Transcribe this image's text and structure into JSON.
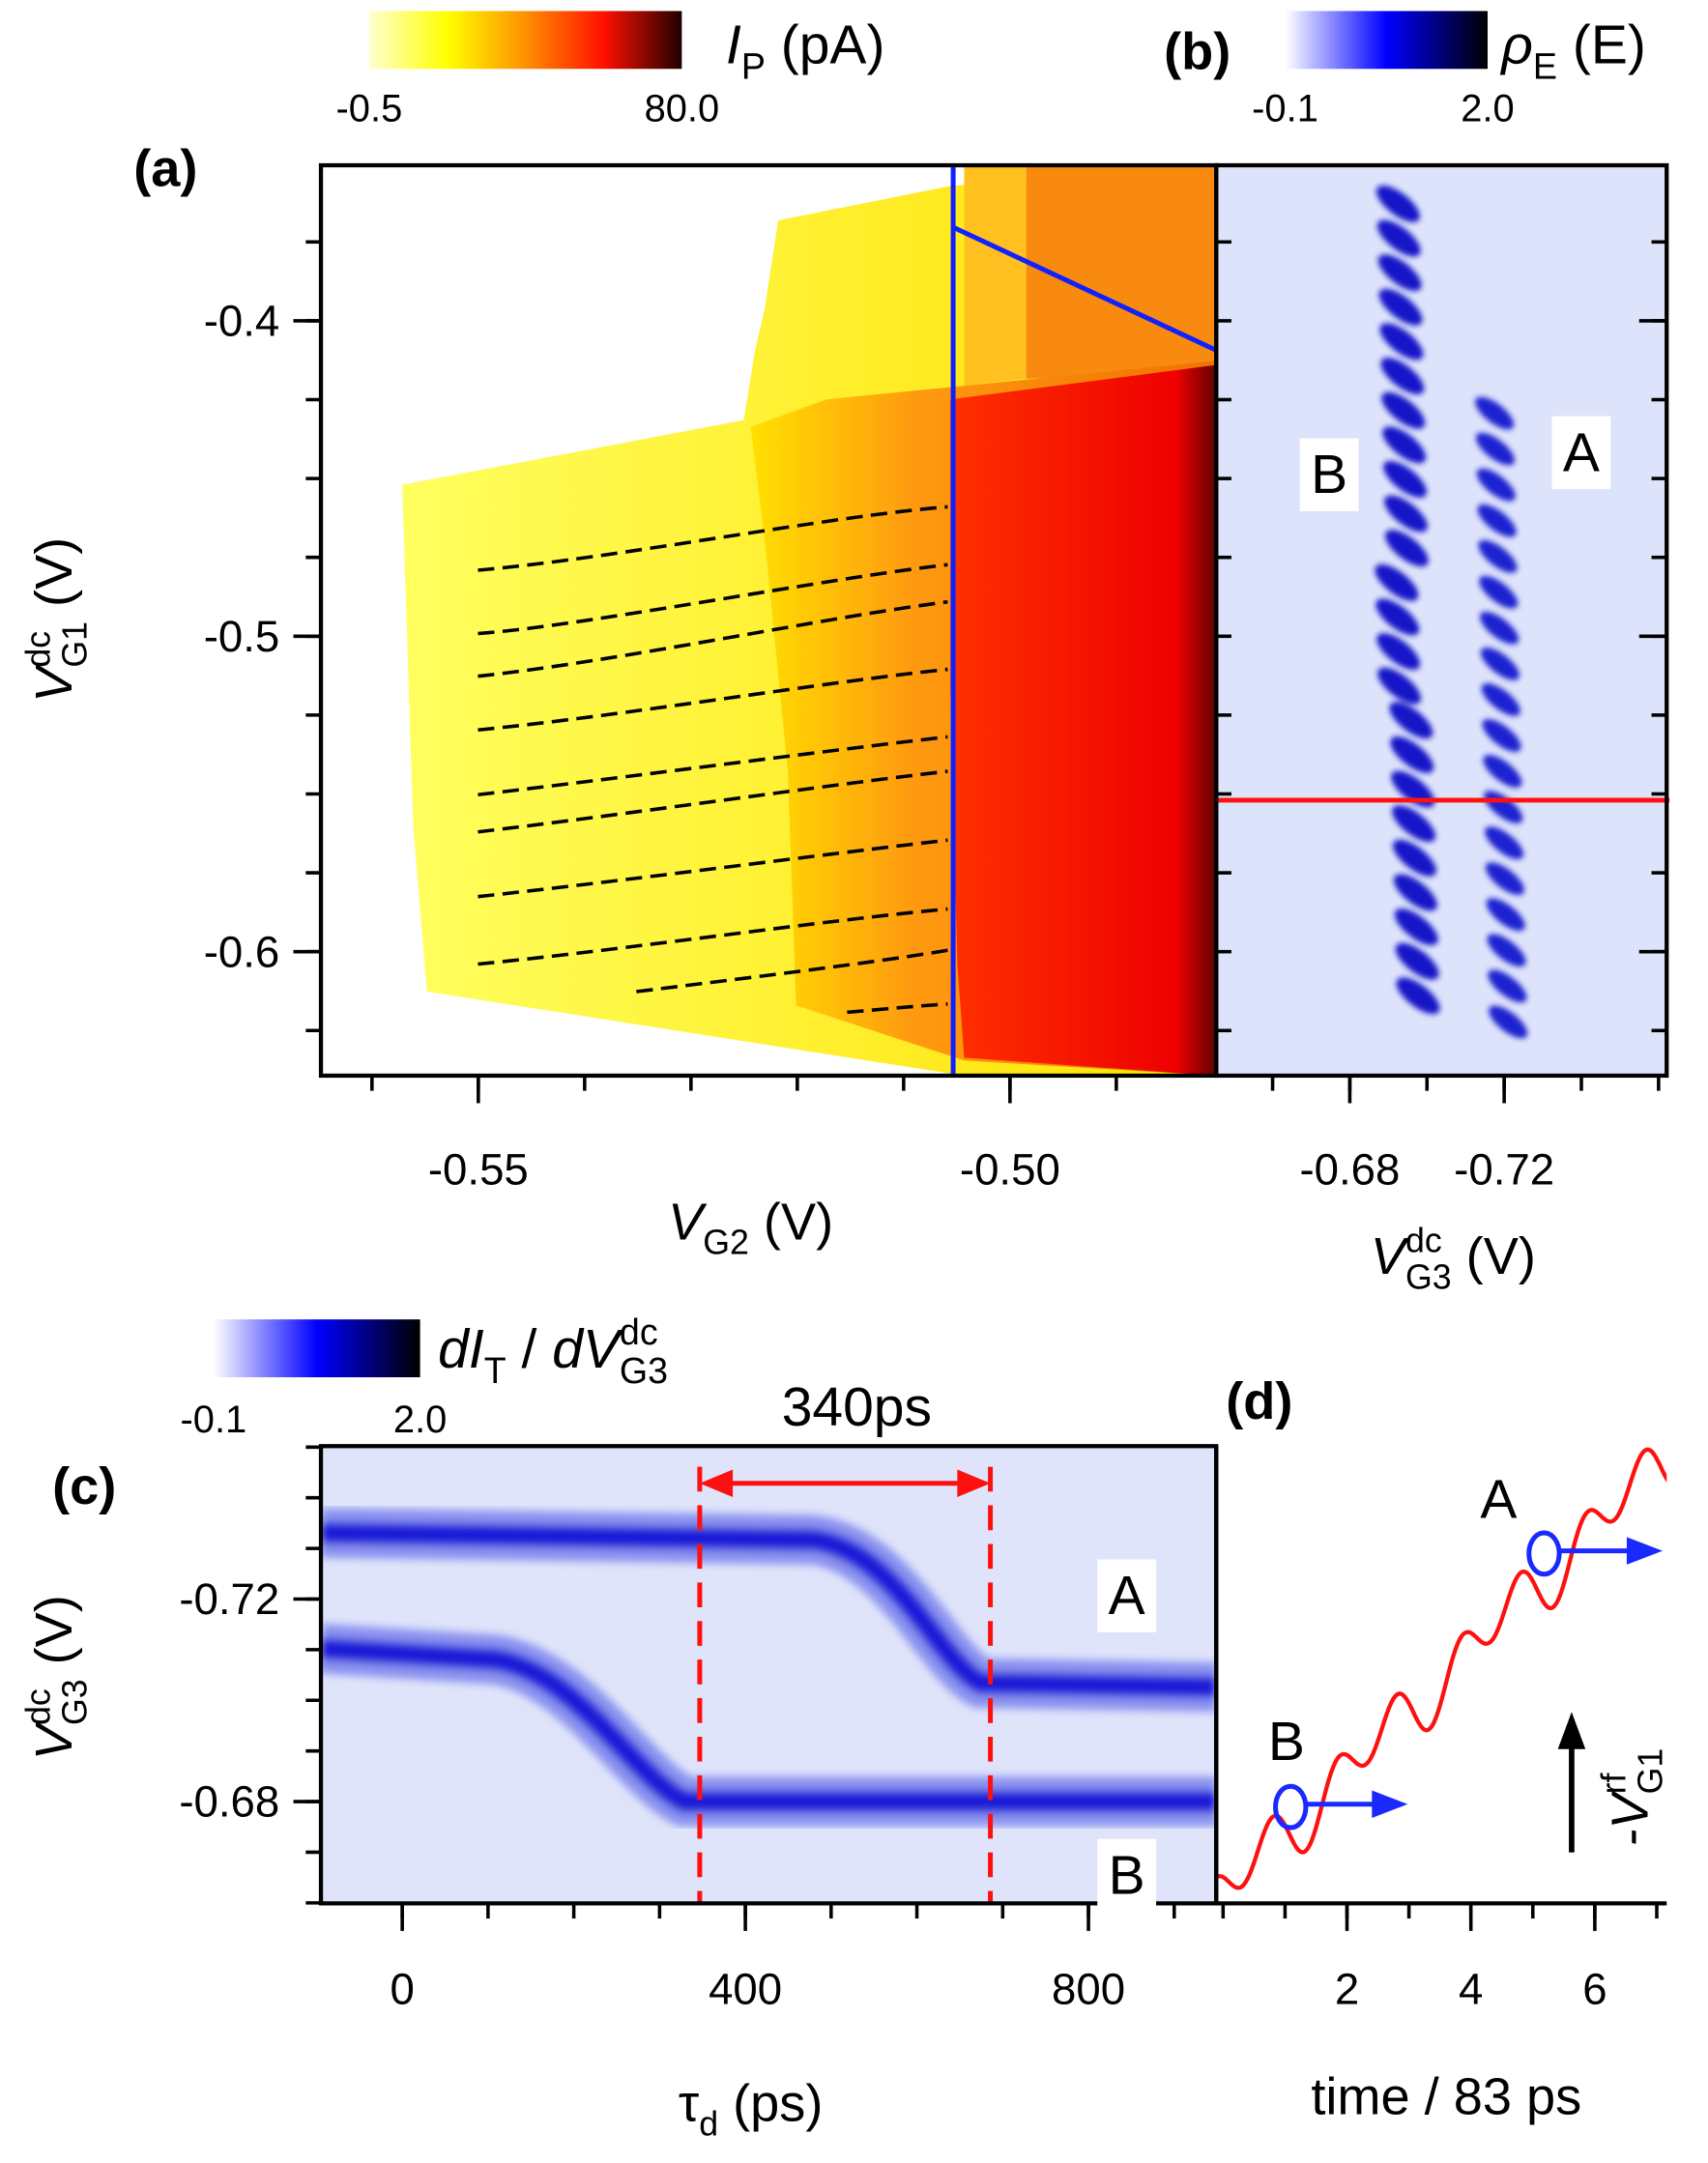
{
  "chart_data": [
    {
      "type": "heatmap",
      "panel_label": "(a)",
      "x_label": [
        {
          "text": "V",
          "style": "i"
        },
        {
          "text": "G2",
          "style": "sub"
        },
        {
          "text": " (V)"
        }
      ],
      "y_label": [
        {
          "text": "V",
          "style": "i"
        },
        {
          "text": "dc",
          "style": "sup"
        },
        {
          "text": "G1",
          "style": "sub"
        },
        {
          "text": " (V)"
        }
      ],
      "xlim": [
        -0.5648,
        -0.4806
      ],
      "xticks": [
        -0.55,
        {
          "value": -0.5,
          "label": "-0.50"
        }
      ],
      "ylim": [
        -0.6393,
        -0.3507
      ],
      "yticks": [
        -0.6,
        -0.5,
        -0.4
      ],
      "colorbar": {
        "label": [
          {
            "text": "I",
            "style": "i"
          },
          {
            "text": "P",
            "style": "sub"
          },
          {
            "text": " (pA)"
          }
        ],
        "clim": [
          -0.5,
          80
        ],
        "ticks": [
          -0.5,
          {
            "value": 80,
            "label": "80.0"
          }
        ],
        "colors": [
          "#ffffd0",
          "#ffff00",
          "#ff9000",
          "#ff1000",
          "#200000"
        ]
      }
    },
    {
      "type": "heatmap",
      "panel_label": "(b)",
      "x_label": [
        {
          "text": "V",
          "style": "i"
        },
        {
          "text": "dc",
          "style": "sup"
        },
        {
          "text": "G3",
          "style": "sub"
        },
        {
          "text": " (V)"
        }
      ],
      "xlim": [
        -0.6454,
        -0.7621
      ],
      "xticks": [
        -0.68,
        -0.72
      ],
      "ylim": [
        -0.6393,
        -0.3507
      ],
      "colorbar": {
        "label": [
          {
            "text": "ρ",
            "style": "i"
          },
          {
            "text": "E",
            "style": "sub"
          },
          {
            "text": " (E)"
          }
        ],
        "clim": [
          -0.1,
          2
        ],
        "ticks": [
          -0.1,
          {
            "value": 2,
            "label": "2.0"
          }
        ],
        "colors": [
          "#ffffff",
          "#0000ff",
          "#000000"
        ]
      },
      "annotations": [
        "B",
        "A"
      ]
    },
    {
      "type": "heatmap",
      "panel_label": "(c)",
      "x_label": [
        {
          "text": "τ"
        },
        {
          "text": "d",
          "style": "sub"
        },
        {
          "text": " (ps)"
        }
      ],
      "y_label": [
        {
          "text": "V",
          "style": "i"
        },
        {
          "text": "dc",
          "style": "sup"
        },
        {
          "text": "G3",
          "style": "sub"
        },
        {
          "text": " (V)"
        }
      ],
      "xlim": [
        -94.8,
        949
      ],
      "xticks": [
        0,
        400,
        800
      ],
      "ylim": [
        -0.6599,
        -0.7502
      ],
      "yticks": [
        -0.72,
        -0.68
      ],
      "colorbar": {
        "label": [
          {
            "text": "dI",
            "style": "i"
          },
          {
            "text": "T",
            "style": "sub"
          },
          {
            "text": " / "
          },
          {
            "text": "dV",
            "style": "i"
          },
          {
            "text": "dc",
            "style": "sup"
          },
          {
            "text": "G3",
            "style": "sub"
          }
        ],
        "clim": [
          -0.1,
          2
        ],
        "ticks": [
          -0.1,
          {
            "value": 2,
            "label": "2.0"
          }
        ],
        "colors": [
          "#ffffff",
          "#0000ff",
          "#000000"
        ]
      },
      "annotations": [
        "340ps",
        "A",
        "B"
      ]
    },
    {
      "type": "line",
      "panel_label": "(d)",
      "x_label": [
        {
          "text": "time / 83 ps"
        }
      ],
      "y_label": [
        {
          "text": "-V",
          "style": "i"
        },
        {
          "text": "rf",
          "style": "sup"
        },
        {
          "text": "G1",
          "style": "sub"
        }
      ],
      "xlim": [
        -0.11,
        7.16
      ],
      "xticks": [
        2,
        4,
        6
      ],
      "annotations": [
        "A",
        "B"
      ]
    }
  ]
}
